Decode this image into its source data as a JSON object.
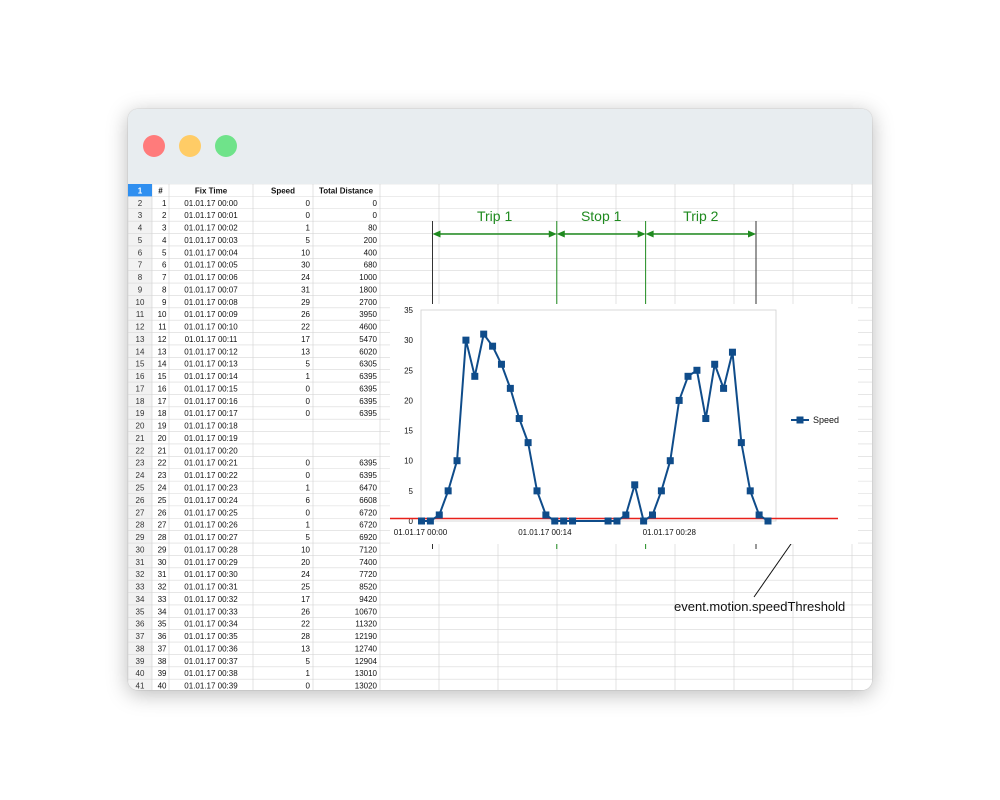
{
  "colors": {
    "close": "#ff7b7b",
    "minimize": "#ffcc66",
    "zoom": "#6fe38a",
    "series": "#0f4c8a",
    "annotation": "#1f8a1f",
    "threshold": "#e8201a"
  },
  "table": {
    "headers": [
      "#",
      "Fix Time",
      "Speed",
      "Total Distance"
    ],
    "corner": "1",
    "rows": [
      [
        "1",
        "01.01.17 00:00",
        "0",
        "0"
      ],
      [
        "2",
        "01.01.17 00:01",
        "0",
        "0"
      ],
      [
        "3",
        "01.01.17 00:02",
        "1",
        "80"
      ],
      [
        "4",
        "01.01.17 00:03",
        "5",
        "200"
      ],
      [
        "5",
        "01.01.17 00:04",
        "10",
        "400"
      ],
      [
        "6",
        "01.01.17 00:05",
        "30",
        "680"
      ],
      [
        "7",
        "01.01.17 00:06",
        "24",
        "1000"
      ],
      [
        "8",
        "01.01.17 00:07",
        "31",
        "1800"
      ],
      [
        "9",
        "01.01.17 00:08",
        "29",
        "2700"
      ],
      [
        "10",
        "01.01.17 00:09",
        "26",
        "3950"
      ],
      [
        "11",
        "01.01.17 00:10",
        "22",
        "4600"
      ],
      [
        "12",
        "01.01.17 00:11",
        "17",
        "5470"
      ],
      [
        "13",
        "01.01.17 00:12",
        "13",
        "6020"
      ],
      [
        "14",
        "01.01.17 00:13",
        "5",
        "6305"
      ],
      [
        "15",
        "01.01.17 00:14",
        "1",
        "6395"
      ],
      [
        "16",
        "01.01.17 00:15",
        "0",
        "6395"
      ],
      [
        "17",
        "01.01.17 00:16",
        "0",
        "6395"
      ],
      [
        "18",
        "01.01.17 00:17",
        "0",
        "6395"
      ],
      [
        "19",
        "01.01.17 00:18",
        "",
        ""
      ],
      [
        "20",
        "01.01.17 00:19",
        "",
        ""
      ],
      [
        "21",
        "01.01.17 00:20",
        "",
        ""
      ],
      [
        "22",
        "01.01.17 00:21",
        "0",
        "6395"
      ],
      [
        "23",
        "01.01.17 00:22",
        "0",
        "6395"
      ],
      [
        "24",
        "01.01.17 00:23",
        "1",
        "6470"
      ],
      [
        "25",
        "01.01.17 00:24",
        "6",
        "6608"
      ],
      [
        "26",
        "01.01.17 00:25",
        "0",
        "6720"
      ],
      [
        "27",
        "01.01.17 00:26",
        "1",
        "6720"
      ],
      [
        "28",
        "01.01.17 00:27",
        "5",
        "6920"
      ],
      [
        "29",
        "01.01.17 00:28",
        "10",
        "7120"
      ],
      [
        "30",
        "01.01.17 00:29",
        "20",
        "7400"
      ],
      [
        "31",
        "01.01.17 00:30",
        "24",
        "7720"
      ],
      [
        "32",
        "01.01.17 00:31",
        "25",
        "8520"
      ],
      [
        "33",
        "01.01.17 00:32",
        "17",
        "9420"
      ],
      [
        "34",
        "01.01.17 00:33",
        "26",
        "10670"
      ],
      [
        "35",
        "01.01.17 00:34",
        "22",
        "11320"
      ],
      [
        "36",
        "01.01.17 00:35",
        "28",
        "12190"
      ],
      [
        "37",
        "01.01.17 00:36",
        "13",
        "12740"
      ],
      [
        "38",
        "01.01.17 00:37",
        "5",
        "12904"
      ],
      [
        "39",
        "01.01.17 00:38",
        "1",
        "13010"
      ],
      [
        "40",
        "01.01.17 00:39",
        "0",
        "13020"
      ]
    ]
  },
  "annotations": {
    "trip1": "Trip 1",
    "stop1": "Stop 1",
    "trip2": "Trip 2",
    "threshold_label": "event.motion.speedThreshold"
  },
  "chart_data": {
    "type": "line",
    "x": [
      "01.01.17 00:00",
      "01.01.17 00:01",
      "01.01.17 00:02",
      "01.01.17 00:03",
      "01.01.17 00:04",
      "01.01.17 00:05",
      "01.01.17 00:06",
      "01.01.17 00:07",
      "01.01.17 00:08",
      "01.01.17 00:09",
      "01.01.17 00:10",
      "01.01.17 00:11",
      "01.01.17 00:12",
      "01.01.17 00:13",
      "01.01.17 00:14",
      "01.01.17 00:15",
      "01.01.17 00:16",
      "01.01.17 00:17",
      "01.01.17 00:18",
      "01.01.17 00:19",
      "01.01.17 00:20",
      "01.01.17 00:21",
      "01.01.17 00:22",
      "01.01.17 00:23",
      "01.01.17 00:24",
      "01.01.17 00:25",
      "01.01.17 00:26",
      "01.01.17 00:27",
      "01.01.17 00:28",
      "01.01.17 00:29",
      "01.01.17 00:30",
      "01.01.17 00:31",
      "01.01.17 00:32",
      "01.01.17 00:33",
      "01.01.17 00:34",
      "01.01.17 00:35",
      "01.01.17 00:36",
      "01.01.17 00:37",
      "01.01.17 00:38",
      "01.01.17 00:39"
    ],
    "series": [
      {
        "name": "Speed",
        "values": [
          0,
          0,
          1,
          5,
          10,
          30,
          24,
          31,
          29,
          26,
          22,
          17,
          13,
          5,
          1,
          0,
          0,
          0,
          null,
          null,
          null,
          0,
          0,
          1,
          6,
          0,
          1,
          5,
          10,
          20,
          24,
          25,
          17,
          26,
          22,
          28,
          13,
          5,
          1,
          0
        ]
      }
    ],
    "ylim": [
      0,
      35
    ],
    "yticks": [
      "0",
      "5",
      "10",
      "15",
      "20",
      "25",
      "30",
      "35"
    ],
    "xtick_labels": [
      "01.01.17 00:00",
      "01.01.17 00:14",
      "01.01.17 00:28"
    ],
    "legend": "right",
    "grid": false,
    "title": "",
    "xlabel": "",
    "ylabel": ""
  }
}
